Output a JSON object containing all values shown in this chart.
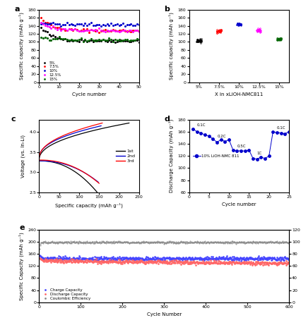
{
  "panel_a": {
    "xlabel": "Cycle number",
    "ylabel": "Specific capacity (mAh g⁻¹)",
    "ylim": [
      0,
      180
    ],
    "xlim": [
      0,
      50
    ],
    "series": {
      "5%": {
        "color": "#000000",
        "start": 135,
        "stable": 103
      },
      "7.5%": {
        "color": "#ff0000",
        "start": 160,
        "stable": 128
      },
      "10%": {
        "color": "#0000cc",
        "start": 148,
        "stable": 143
      },
      "12.5%": {
        "color": "#ff00ff",
        "start": 148,
        "stable": 128
      },
      "15%": {
        "color": "#006400",
        "start": 110,
        "stable": 105
      }
    }
  },
  "panel_b": {
    "xlabel": "X in xLiOH-NMC811",
    "ylabel": "Specific capacity (mAh g⁻¹)",
    "ylim": [
      0,
      180
    ],
    "categories": [
      "5%",
      "7.5%",
      "10%",
      "12.5%",
      "15%"
    ],
    "means": [
      103,
      127,
      144,
      129,
      108
    ],
    "spreads": [
      3.5,
      4,
      2.5,
      4,
      3.5
    ],
    "colors": [
      "#000000",
      "#ff0000",
      "#0000cc",
      "#ff00ff",
      "#006400"
    ]
  },
  "panel_c": {
    "xlabel": "Specific capacity (mAh g⁻¹)",
    "ylabel": "Voltage (vs. In-Li)",
    "ylim": [
      2.5,
      4.3
    ],
    "xlim": [
      0,
      250
    ],
    "series": [
      "1st",
      "2nd",
      "3rd"
    ],
    "colors": [
      "#000000",
      "#0000cc",
      "#ff0000"
    ]
  },
  "panel_d": {
    "xlabel": "Cycle number",
    "ylabel": "Discharge Capacity (mAh g⁻¹)",
    "ylim": [
      60,
      180
    ],
    "xlim": [
      0,
      25
    ],
    "label": "●  10% LiOH-NMC 811",
    "color": "#0000cc",
    "cycle_vals": [
      165,
      160,
      158,
      155,
      153,
      148,
      143,
      147,
      144,
      147,
      130,
      128,
      129,
      128,
      130,
      116,
      115,
      118,
      116,
      120,
      160,
      159,
      158,
      157,
      160
    ],
    "rate_labels": [
      "0.1C",
      "0.2C",
      "0.5C",
      "1C",
      "0.1C"
    ],
    "rate_x": [
      2,
      7,
      12,
      17,
      22
    ],
    "rate_y": [
      168,
      150,
      133,
      121,
      163
    ]
  },
  "panel_e": {
    "xlabel": "Cycle Number",
    "ylabel_left": "Specific Capacity (mAh g⁻¹)",
    "ylabel_right": "Coulombic Efficiency (%)",
    "ylim_left": [
      0,
      240
    ],
    "ylim_right": [
      0,
      120
    ],
    "xlim": [
      0,
      600
    ],
    "charge_color": "#4444ff",
    "discharge_color": "#ff6666",
    "ce_color": "#888888",
    "charge_stable": 145,
    "discharge_stable": 138,
    "ce_stable": 99.5
  }
}
